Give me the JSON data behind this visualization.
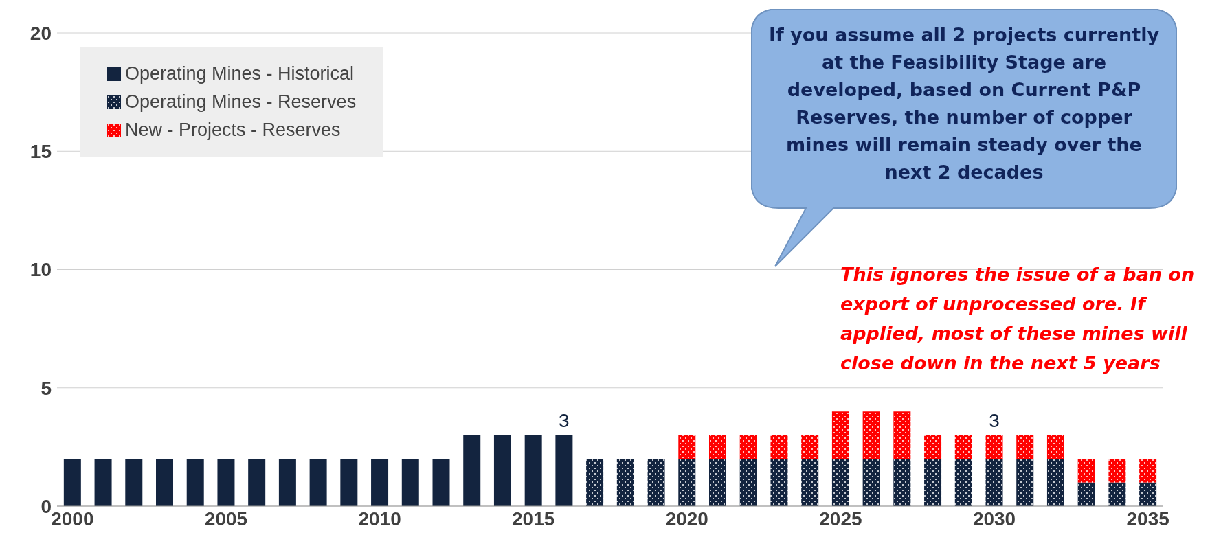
{
  "chart_data": {
    "type": "bar",
    "stacked": true,
    "categories": [
      "2000",
      null,
      null,
      null,
      null,
      "2005",
      null,
      null,
      null,
      null,
      "2010",
      null,
      null,
      null,
      null,
      "2015",
      null,
      null,
      null,
      null,
      "2020",
      null,
      null,
      null,
      null,
      "2025",
      null,
      null,
      null,
      null,
      "2030",
      null,
      null,
      null,
      null,
      "2035"
    ],
    "series": [
      {
        "name": "Operating Mines - Historical",
        "color": "#13243f",
        "values": [
          2,
          2,
          2,
          2,
          2,
          2,
          2,
          2,
          2,
          2,
          2,
          2,
          2,
          3,
          3,
          3,
          3,
          null,
          null,
          null,
          null,
          null,
          null,
          null,
          null,
          null,
          null,
          null,
          null,
          null,
          null,
          null,
          null,
          null,
          null,
          null
        ]
      },
      {
        "name": "Operating Mines - Reserves",
        "color": "#13243f",
        "values": [
          null,
          null,
          null,
          null,
          null,
          null,
          null,
          null,
          null,
          null,
          null,
          null,
          null,
          null,
          null,
          null,
          null,
          2,
          2,
          2,
          2,
          2,
          2,
          2,
          2,
          2,
          2,
          2,
          2,
          2,
          2,
          2,
          2,
          1,
          1,
          1
        ]
      },
      {
        "name": "New - Projects - Reserves",
        "color": "#ff0000",
        "values": [
          null,
          null,
          null,
          null,
          null,
          null,
          null,
          null,
          null,
          null,
          null,
          null,
          null,
          null,
          null,
          null,
          null,
          null,
          null,
          null,
          1,
          1,
          1,
          1,
          1,
          2,
          2,
          2,
          1,
          1,
          1,
          1,
          1,
          1,
          1,
          1
        ]
      }
    ],
    "totals": [
      null,
      null,
      null,
      null,
      null,
      null,
      null,
      null,
      null,
      null,
      null,
      null,
      null,
      null,
      null,
      null,
      "3",
      null,
      null,
      null,
      null,
      null,
      null,
      null,
      null,
      null,
      null,
      null,
      null,
      null,
      "3",
      null,
      null,
      null,
      null,
      null
    ],
    "ylim": [
      0,
      20
    ],
    "yticks": [
      0,
      5,
      10,
      15,
      20
    ],
    "grid": "y",
    "legend": "top left",
    "annotations": [
      "If you assume all 2 projects currently at the Feasibility Stage are developed, based on Current P&P Reserves, the number of copper mines will remain steady over the next 2 decades",
      "This ignores the issue of a ban on export of unprocessed ore. If applied, most of these mines will close down in the next 5 years"
    ]
  }
}
